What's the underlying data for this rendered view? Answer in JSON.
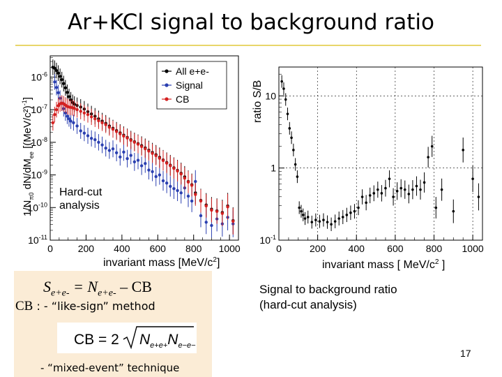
{
  "slide": {
    "title": "Ar+KCl signal to background ratio",
    "caption_line1": "Signal to background ratio",
    "caption_line2": "(hard-cut analysis)",
    "page_number": "17"
  },
  "formula": {
    "eq_s": "S",
    "eq_s_sub": "e+e-",
    "eq_mid": " = N",
    "eq_n_sub": "e+e-",
    "eq_end": " – CB",
    "cb_word": "CB",
    "cb_method": " : - “like-sign” method",
    "cb_formula_lhs": "CB = 2",
    "cb_formula_n": "N",
    "cb_formula_sub1": "e+e+",
    "cb_formula_sub2": "e−e−",
    "mixed": "- “mixed-event” technique"
  },
  "chart_data": [
    {
      "type": "scatter",
      "title": "",
      "ylabel": "1/Nπ0 dN/dMee [(MeV/c²)⁻¹]",
      "ylabel_main": "1/N",
      "ylabel_sub": "π0",
      "ylabel_rest": " dN/dM",
      "ylabel_sub2": "ee",
      "ylabel_units": " [(MeV/c²)",
      "ylabel_sup": "-1",
      "ylabel_close": "]",
      "xlabel_main": "invariant mass [MeV/c",
      "xlabel_sup": "2",
      "xlabel_close": "]",
      "xlim": [
        0,
        1050
      ],
      "ylim_log10": [
        -11,
        -5.35
      ],
      "y_scale": "log",
      "annotation_line1": "Hard-cut",
      "annotation_line2": "analysis",
      "legend_position": "top-right",
      "x_ticks": [
        {
          "value": 0,
          "label": "0"
        },
        {
          "value": 200,
          "label": "200"
        },
        {
          "value": 400,
          "label": "400"
        },
        {
          "value": 600,
          "label": "600"
        },
        {
          "value": 800,
          "label": "800"
        },
        {
          "value": 1000,
          "label": "1000"
        }
      ],
      "y_ticks": [
        {
          "exp": -6,
          "base": "10",
          "sup": "-6"
        },
        {
          "exp": -7,
          "base": "10",
          "sup": "-7"
        },
        {
          "exp": -8,
          "base": "10",
          "sup": "-8"
        },
        {
          "exp": -9,
          "base": "10",
          "sup": "-9"
        },
        {
          "exp": -10,
          "base": "10",
          "sup": "-10"
        },
        {
          "exp": -11,
          "base": "10",
          "sup": "-11"
        }
      ],
      "series": [
        {
          "name": "All e+e-",
          "color": "#000000",
          "points": [
            [
              15,
              -5.7
            ],
            [
              25,
              -5.73
            ],
            [
              35,
              -5.8
            ],
            [
              45,
              -5.88
            ],
            [
              55,
              -5.98
            ],
            [
              65,
              -6.08
            ],
            [
              75,
              -6.2
            ],
            [
              85,
              -6.33
            ],
            [
              95,
              -6.47
            ],
            [
              105,
              -6.6
            ],
            [
              115,
              -6.7
            ],
            [
              125,
              -6.78
            ],
            [
              135,
              -6.83
            ],
            [
              150,
              -6.87
            ],
            [
              170,
              -6.92
            ],
            [
              190,
              -6.98
            ],
            [
              210,
              -7.06
            ],
            [
              230,
              -7.13
            ],
            [
              250,
              -7.2
            ],
            [
              270,
              -7.28
            ],
            [
              290,
              -7.35
            ],
            [
              310,
              -7.42
            ],
            [
              330,
              -7.5
            ],
            [
              350,
              -7.57
            ],
            [
              370,
              -7.64
            ],
            [
              390,
              -7.71
            ],
            [
              410,
              -7.78
            ],
            [
              430,
              -7.85
            ],
            [
              450,
              -7.92
            ],
            [
              470,
              -7.98
            ],
            [
              490,
              -8.04
            ],
            [
              510,
              -8.1
            ],
            [
              530,
              -8.17
            ],
            [
              550,
              -8.24
            ],
            [
              570,
              -8.31
            ],
            [
              590,
              -8.38
            ],
            [
              610,
              -8.46
            ],
            [
              630,
              -8.54
            ],
            [
              650,
              -8.62
            ],
            [
              670,
              -8.7
            ],
            [
              690,
              -8.78
            ],
            [
              710,
              -8.86
            ],
            [
              730,
              -8.95
            ],
            [
              750,
              -9.06
            ],
            [
              770,
              -9.2
            ],
            [
              790,
              -9.3
            ],
            [
              810,
              -9.55
            ],
            [
              840,
              -9.78
            ],
            [
              870,
              -9.92
            ],
            [
              900,
              -10.05
            ],
            [
              930,
              -10.1
            ],
            [
              960,
              -10.15
            ],
            [
              990,
              -9.95
            ],
            [
              1020,
              -10.4
            ]
          ]
        },
        {
          "name": "Signal",
          "color": "#2a3fb0",
          "points": [
            [
              25,
              -6.15
            ],
            [
              35,
              -6.32
            ],
            [
              45,
              -6.48
            ],
            [
              55,
              -6.65
            ],
            [
              65,
              -6.8
            ],
            [
              75,
              -6.97
            ],
            [
              85,
              -7.1
            ],
            [
              95,
              -7.2
            ],
            [
              105,
              -7.28
            ],
            [
              115,
              -7.35
            ],
            [
              130,
              -7.4
            ],
            [
              150,
              -7.5
            ],
            [
              170,
              -7.65
            ],
            [
              190,
              -7.72
            ],
            [
              210,
              -7.8
            ],
            [
              230,
              -7.88
            ],
            [
              250,
              -7.92
            ],
            [
              270,
              -8.0
            ],
            [
              290,
              -8.08
            ],
            [
              310,
              -8.18
            ],
            [
              330,
              -8.25
            ],
            [
              350,
              -8.2
            ],
            [
              370,
              -8.32
            ],
            [
              390,
              -8.45
            ],
            [
              410,
              -8.3
            ],
            [
              430,
              -8.5
            ],
            [
              450,
              -8.4
            ],
            [
              470,
              -8.6
            ],
            [
              490,
              -8.55
            ],
            [
              510,
              -8.72
            ],
            [
              530,
              -8.65
            ],
            [
              550,
              -8.85
            ],
            [
              570,
              -8.9
            ],
            [
              590,
              -9.05
            ],
            [
              610,
              -9.0
            ],
            [
              630,
              -9.18
            ],
            [
              650,
              -9.25
            ],
            [
              670,
              -9.35
            ],
            [
              690,
              -9.42
            ],
            [
              710,
              -9.48
            ],
            [
              730,
              -9.55
            ],
            [
              750,
              -9.4
            ],
            [
              770,
              -9.65
            ],
            [
              790,
              -9.8
            ],
            [
              810,
              -9.2
            ],
            [
              840,
              -10.25
            ],
            [
              870,
              -10.45
            ],
            [
              900,
              -10.55
            ],
            [
              930,
              -10.35
            ],
            [
              960,
              -10.5
            ],
            [
              990,
              -10.3
            ],
            [
              1020,
              -10.5
            ]
          ]
        },
        {
          "name": "CB",
          "color": "#d42020",
          "points": [
            [
              15,
              -7.4
            ],
            [
              25,
              -7.15
            ],
            [
              35,
              -7.0
            ],
            [
              45,
              -6.88
            ],
            [
              55,
              -6.82
            ],
            [
              65,
              -6.8
            ],
            [
              75,
              -6.82
            ],
            [
              85,
              -6.86
            ],
            [
              95,
              -6.9
            ],
            [
              105,
              -6.92
            ],
            [
              115,
              -6.93
            ],
            [
              125,
              -6.94
            ],
            [
              135,
              -6.96
            ],
            [
              150,
              -7.0
            ],
            [
              170,
              -7.05
            ],
            [
              190,
              -7.1
            ],
            [
              210,
              -7.15
            ],
            [
              230,
              -7.22
            ],
            [
              250,
              -7.28
            ],
            [
              270,
              -7.34
            ],
            [
              290,
              -7.4
            ],
            [
              310,
              -7.46
            ],
            [
              330,
              -7.54
            ],
            [
              350,
              -7.6
            ],
            [
              370,
              -7.67
            ],
            [
              390,
              -7.74
            ],
            [
              410,
              -7.81
            ],
            [
              430,
              -7.87
            ],
            [
              450,
              -7.94
            ],
            [
              470,
              -8.0
            ],
            [
              490,
              -8.06
            ],
            [
              510,
              -8.13
            ],
            [
              530,
              -8.2
            ],
            [
              550,
              -8.27
            ],
            [
              570,
              -8.34
            ],
            [
              590,
              -8.41
            ],
            [
              610,
              -8.49
            ],
            [
              630,
              -8.56
            ],
            [
              650,
              -8.64
            ],
            [
              670,
              -8.72
            ],
            [
              690,
              -8.8
            ],
            [
              710,
              -8.88
            ],
            [
              730,
              -8.97
            ],
            [
              750,
              -9.1
            ],
            [
              770,
              -9.22
            ],
            [
              790,
              -9.32
            ],
            [
              810,
              -9.6
            ],
            [
              840,
              -9.8
            ],
            [
              870,
              -9.95
            ],
            [
              900,
              -10.08
            ],
            [
              930,
              -10.12
            ],
            [
              960,
              -10.18
            ],
            [
              990,
              -9.98
            ],
            [
              1020,
              -10.42
            ]
          ]
        }
      ]
    },
    {
      "type": "scatter",
      "title": "",
      "ylabel": "ratio S/B",
      "xlabel_main": "invariant mass [ MeV/c",
      "xlabel_sup": "2",
      "xlabel_close": " ]",
      "xlim": [
        0,
        1050
      ],
      "ylim_log10": [
        -1,
        1.4
      ],
      "y_scale": "log",
      "grid": true,
      "x_ticks": [
        {
          "value": 0,
          "label": "0"
        },
        {
          "value": 200,
          "label": "200"
        },
        {
          "value": 400,
          "label": "400"
        },
        {
          "value": 600,
          "label": "600"
        },
        {
          "value": 800,
          "label": "800"
        },
        {
          "value": 1000,
          "label": "1000"
        }
      ],
      "y_ticks": [
        {
          "exp": 1,
          "label": "10"
        },
        {
          "exp": 0,
          "label": "1"
        },
        {
          "exp": -1,
          "base": "10",
          "sup": "-1"
        }
      ],
      "series": [
        {
          "name": "",
          "color": "#000000",
          "points": [
            [
              15,
              1.2
            ],
            [
              25,
              1.1
            ],
            [
              35,
              0.95
            ],
            [
              45,
              0.75
            ],
            [
              55,
              0.55
            ],
            [
              65,
              0.42
            ],
            [
              75,
              0.25
            ],
            [
              85,
              0.05
            ],
            [
              95,
              -0.12
            ],
            [
              105,
              -0.55
            ],
            [
              115,
              -0.6
            ],
            [
              125,
              -0.65
            ],
            [
              135,
              -0.7
            ],
            [
              150,
              -0.68
            ],
            [
              170,
              -0.75
            ],
            [
              190,
              -0.72
            ],
            [
              210,
              -0.74
            ],
            [
              230,
              -0.72
            ],
            [
              250,
              -0.75
            ],
            [
              270,
              -0.78
            ],
            [
              290,
              -0.74
            ],
            [
              310,
              -0.7
            ],
            [
              330,
              -0.68
            ],
            [
              350,
              -0.65
            ],
            [
              370,
              -0.62
            ],
            [
              390,
              -0.6
            ],
            [
              410,
              -0.55
            ],
            [
              430,
              -0.4
            ],
            [
              450,
              -0.48
            ],
            [
              470,
              -0.38
            ],
            [
              490,
              -0.35
            ],
            [
              510,
              -0.3
            ],
            [
              530,
              -0.35
            ],
            [
              550,
              -0.28
            ],
            [
              570,
              -0.15
            ],
            [
              590,
              -0.4
            ],
            [
              610,
              -0.32
            ],
            [
              630,
              -0.28
            ],
            [
              650,
              -0.3
            ],
            [
              670,
              -0.36
            ],
            [
              690,
              -0.3
            ],
            [
              710,
              -0.25
            ],
            [
              730,
              -0.3
            ],
            [
              750,
              -0.2
            ],
            [
              770,
              0.15
            ],
            [
              790,
              0.3
            ],
            [
              810,
              -0.55
            ],
            [
              840,
              -0.3
            ],
            [
              900,
              -0.6
            ],
            [
              950,
              0.25
            ],
            [
              1000,
              -0.15
            ],
            [
              1030,
              -0.4
            ]
          ]
        }
      ]
    }
  ]
}
